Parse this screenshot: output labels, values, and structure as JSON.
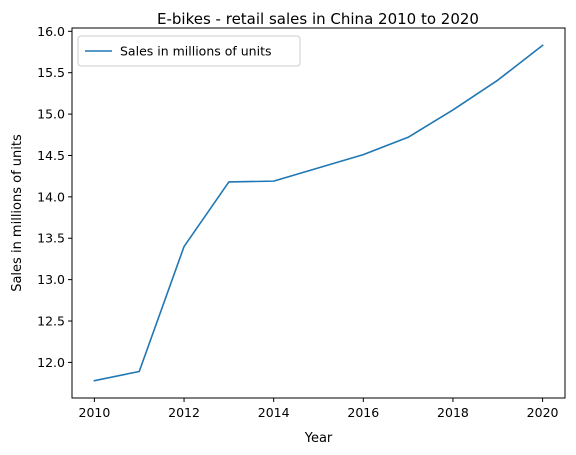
{
  "chart_data": {
    "type": "line",
    "title": "E-bikes - retail sales in China 2010 to 2020",
    "xlabel": "Year",
    "ylabel": "Sales in millions of units",
    "xlim": [
      2009.5,
      2020.5
    ],
    "ylim": [
      11.57,
      16.04
    ],
    "xticks": [
      2010,
      2012,
      2014,
      2016,
      2018,
      2020
    ],
    "xtick_labels": [
      "2010",
      "2012",
      "2014",
      "2016",
      "2018",
      "2020"
    ],
    "yticks": [
      12.0,
      12.5,
      13.0,
      13.5,
      14.0,
      14.5,
      15.0,
      15.5,
      16.0
    ],
    "ytick_labels": [
      "12.0",
      "12.5",
      "13.0",
      "13.5",
      "14.0",
      "14.5",
      "15.0",
      "15.5",
      "16.0"
    ],
    "legend_position": "top-left",
    "grid": false,
    "series": [
      {
        "name": "Sales in millions of units",
        "color": "#1f77b4",
        "x": [
          2010,
          2011,
          2012,
          2013,
          2014,
          2015,
          2016,
          2017,
          2018,
          2019,
          2020
        ],
        "y": [
          11.78,
          11.89,
          13.4,
          14.18,
          14.19,
          14.35,
          14.51,
          14.72,
          15.05,
          15.41,
          15.83
        ]
      }
    ]
  }
}
